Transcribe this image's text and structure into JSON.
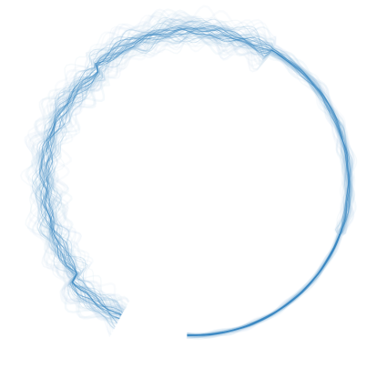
{
  "scene": {
    "subject": "",
    "colors": {
      "background": "#ffffff",
      "stroke": "#3a87c2",
      "stroke_light": "#9cc3e0",
      "stroke_faint": "#cfe2f1"
    }
  }
}
